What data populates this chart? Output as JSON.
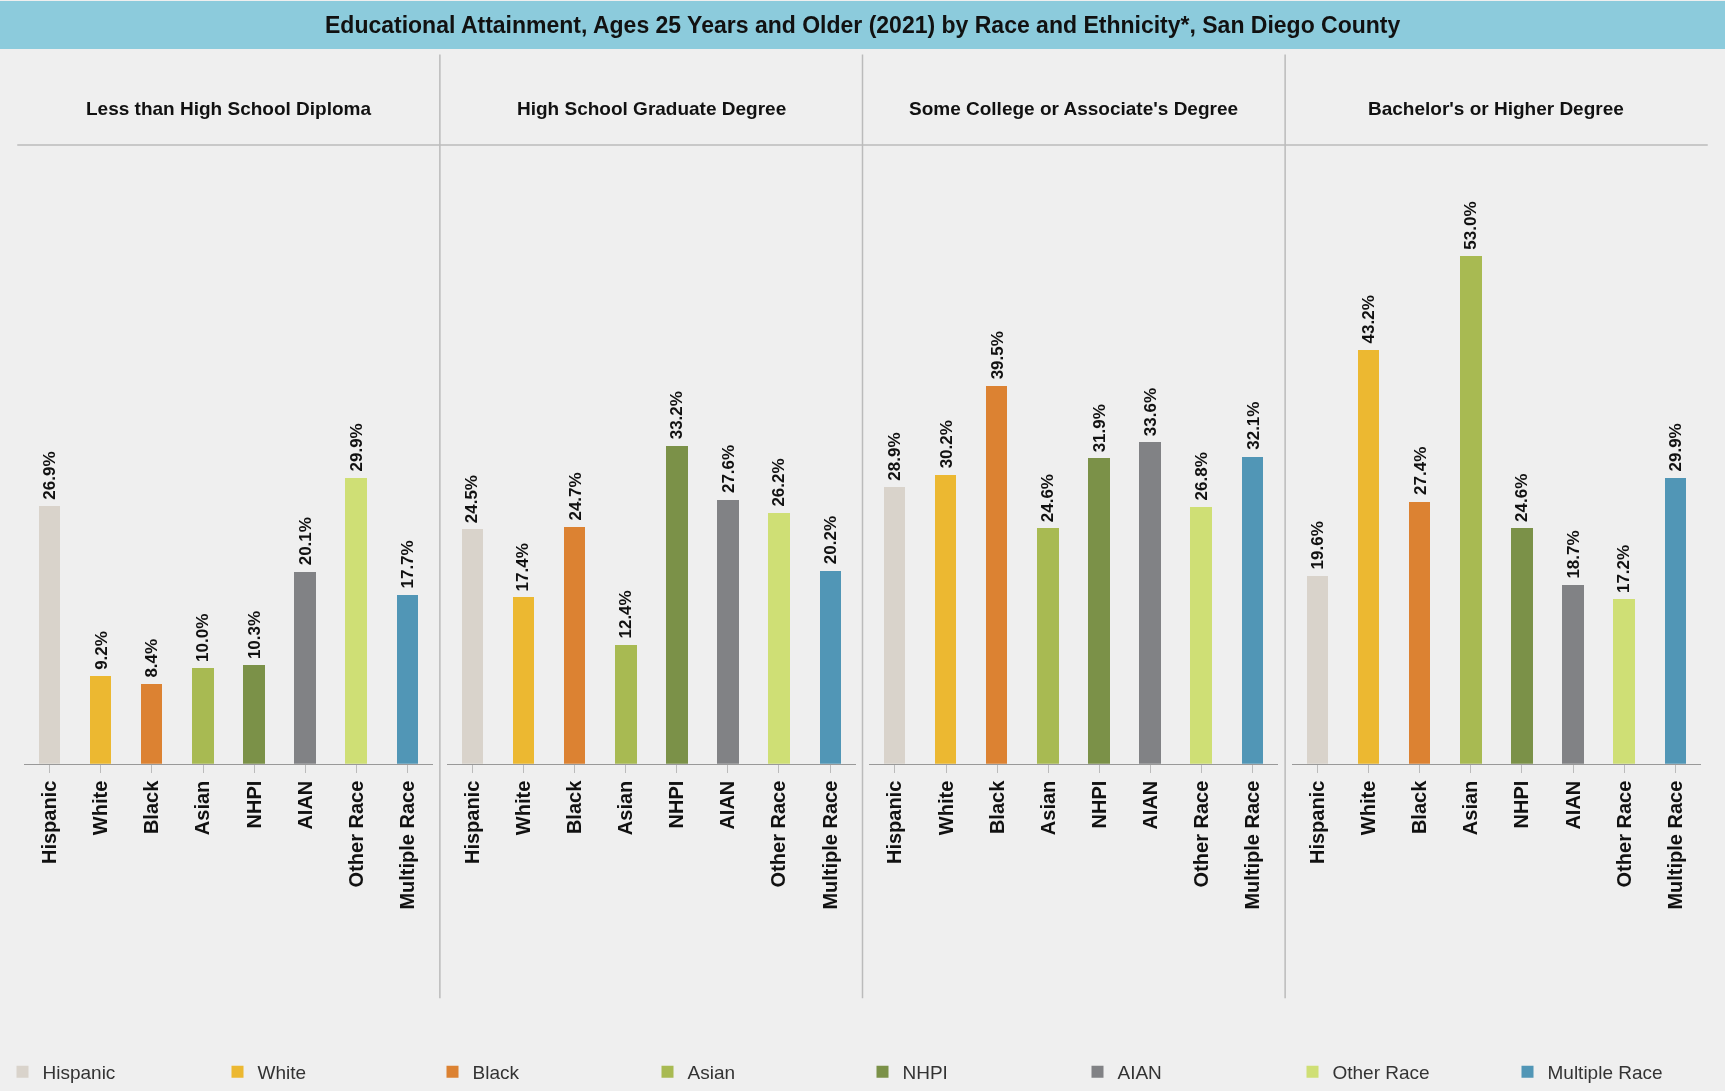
{
  "chart_data": [
    {
      "type": "bar",
      "title": "Educational Attainment, Ages 25 Years and Older (2021) by Race and Ethnicity*, San Diego County",
      "subtitle": "Less than High School Diploma",
      "legend": "bottom",
      "grid": false,
      "categories": [
        "Hispanic",
        "White",
        "Black",
        "Asian",
        "NHPI",
        "AIAN",
        "Other Race",
        "Multiple Race"
      ],
      "series": [
        {
          "name": "Hispanic",
          "color": "#d9d3cb",
          "values": [
            26.9,
            null,
            null,
            null,
            null,
            null,
            null,
            null
          ],
          "value_labels": [
            "26.9%",
            null,
            null,
            null,
            null,
            null,
            null,
            null
          ]
        },
        {
          "name": "White",
          "color": "#ecb831",
          "values": [
            null,
            9.2,
            null,
            null,
            null,
            null,
            null,
            null
          ],
          "value_labels": [
            null,
            "9.2%",
            null,
            null,
            null,
            null,
            null,
            null
          ]
        },
        {
          "name": "Black",
          "color": "#dc8232",
          "values": [
            null,
            null,
            8.4,
            null,
            null,
            null,
            null,
            null
          ],
          "value_labels": [
            null,
            null,
            "8.4%",
            null,
            null,
            null,
            null,
            null
          ]
        },
        {
          "name": "Asian",
          "color": "#a8ba52",
          "values": [
            null,
            null,
            null,
            10.0,
            null,
            null,
            null,
            null
          ],
          "value_labels": [
            null,
            null,
            null,
            "10.0%",
            null,
            null,
            null,
            null
          ]
        },
        {
          "name": "NHPI",
          "color": "#7b9148",
          "values": [
            null,
            null,
            null,
            null,
            10.3,
            null,
            null,
            null
          ],
          "value_labels": [
            null,
            null,
            null,
            null,
            "10.3%",
            null,
            null,
            null
          ]
        },
        {
          "name": "AIAN",
          "color": "#818285",
          "values": [
            null,
            null,
            null,
            null,
            null,
            20.1,
            null,
            null
          ],
          "value_labels": [
            null,
            null,
            null,
            null,
            null,
            "20.1%",
            null,
            null
          ]
        },
        {
          "name": "Other Race",
          "color": "#cfdf75",
          "values": [
            null,
            null,
            null,
            null,
            null,
            null,
            29.9,
            null
          ],
          "value_labels": [
            null,
            null,
            null,
            null,
            null,
            null,
            "29.9%",
            null
          ]
        },
        {
          "name": "Multiple Race",
          "color": "#5196b6",
          "values": [
            null,
            null,
            null,
            null,
            null,
            null,
            null,
            17.7
          ],
          "value_labels": [
            null,
            null,
            null,
            null,
            null,
            null,
            null,
            "17.7%"
          ]
        }
      ]
    },
    {
      "type": "bar",
      "subtitle": "High School Graduate Degree",
      "grid": false,
      "categories": [
        "Hispanic",
        "White",
        "Black",
        "Asian",
        "NHPI",
        "AIAN",
        "Other Race",
        "Multiple Race"
      ],
      "colors": [
        "#d9d3cb",
        "#ecb831",
        "#dc8232",
        "#a8ba52",
        "#7b9148",
        "#818285",
        "#cfdf75",
        "#5196b6"
      ],
      "values": [
        24.5,
        17.4,
        24.7,
        12.4,
        33.2,
        27.6,
        26.2,
        20.2
      ],
      "value_labels": [
        "24.5%",
        "17.4%",
        "24.7%",
        "12.4%",
        "33.2%",
        "27.6%",
        "26.2%",
        "20.2%"
      ]
    },
    {
      "type": "bar",
      "subtitle": "Some College or Associate's Degree",
      "grid": false,
      "categories": [
        "Hispanic",
        "White",
        "Black",
        "Asian",
        "NHPI",
        "AIAN",
        "Other Race",
        "Multiple Race"
      ],
      "colors": [
        "#d9d3cb",
        "#ecb831",
        "#dc8232",
        "#a8ba52",
        "#7b9148",
        "#818285",
        "#cfdf75",
        "#5196b6"
      ],
      "values": [
        28.9,
        30.2,
        39.5,
        24.6,
        31.9,
        33.6,
        26.8,
        32.1
      ],
      "value_labels": [
        "28.9%",
        "30.2%",
        "39.5%",
        "24.6%",
        "31.9%",
        "33.6%",
        "26.8%",
        "32.1%"
      ]
    },
    {
      "type": "bar",
      "subtitle": "Bachelor's or Higher Degree",
      "grid": false,
      "categories": [
        "Hispanic",
        "White",
        "Black",
        "Asian",
        "NHPI",
        "AIAN",
        "Other Race",
        "Multiple Race"
      ],
      "colors": [
        "#d9d3cb",
        "#ecb831",
        "#dc8232",
        "#a8ba52",
        "#7b9148",
        "#818285",
        "#cfdf75",
        "#5196b6"
      ],
      "values": [
        19.6,
        43.2,
        27.4,
        53.0,
        24.6,
        18.7,
        17.2,
        29.9
      ],
      "value_labels": [
        "19.6%",
        "43.2%",
        "27.4%",
        "53.0%",
        "24.6%",
        "18.7%",
        "17.2%",
        "29.9%"
      ]
    }
  ]
}
